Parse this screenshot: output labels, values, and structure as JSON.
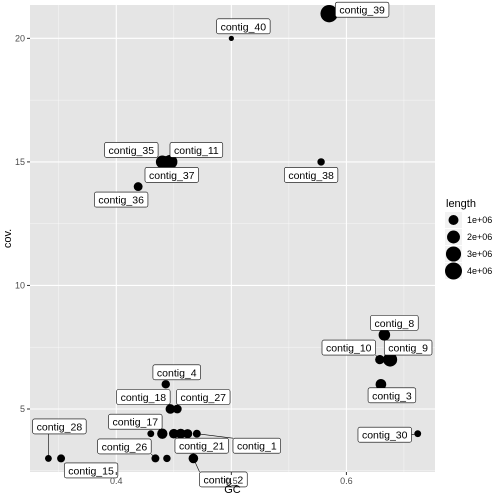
{
  "chart_data": {
    "type": "scatter",
    "xlabel": "GC",
    "ylabel": "cov.",
    "xlim": [
      0.325,
      0.677
    ],
    "ylim": [
      2.45,
      21.35
    ],
    "x_ticks": [
      0.4,
      0.5,
      0.6
    ],
    "x_tick_labels": [
      "0.4",
      "0.5",
      "0.6"
    ],
    "y_ticks": [
      5,
      10,
      15,
      20
    ],
    "y_tick_labels": [
      "5",
      "10",
      "15",
      "20"
    ],
    "grid": true,
    "background": "#e5e5e5",
    "grid_color": "#ffffff",
    "point_color": "#000000",
    "size_legend": {
      "title": "length",
      "position": "right",
      "entries": [
        {
          "label": "1e+06",
          "value": 1000000
        },
        {
          "label": "2e+06",
          "value": 2000000
        },
        {
          "label": "3e+06",
          "value": 3000000
        },
        {
          "label": "4e+06",
          "value": 4000000
        }
      ]
    },
    "points": [
      {
        "label": "contig_39",
        "x": 0.585,
        "y": 21.0,
        "length": 4200000
      },
      {
        "label": "contig_40",
        "x": 0.5,
        "y": 20.0,
        "length": 100000
      },
      {
        "label": "contig_35",
        "x": 0.44,
        "y": 15.0,
        "length": 2000000
      },
      {
        "label": "contig_11",
        "x": 0.447,
        "y": 15.0,
        "length": 2500000
      },
      {
        "label": "contig_37",
        "x": 0.443,
        "y": 15.0,
        "length": 1500000
      },
      {
        "label": "contig_36",
        "x": 0.419,
        "y": 14.0,
        "length": 700000
      },
      {
        "label": "contig_38",
        "x": 0.578,
        "y": 15.0,
        "length": 400000
      },
      {
        "label": "contig_8",
        "x": 0.633,
        "y": 8.0,
        "length": 1500000
      },
      {
        "label": "contig_10",
        "x": 0.629,
        "y": 7.0,
        "length": 800000
      },
      {
        "label": "contig_9",
        "x": 0.638,
        "y": 7.0,
        "length": 2500000
      },
      {
        "label": "contig_3",
        "x": 0.63,
        "y": 6.0,
        "length": 1200000
      },
      {
        "label": "contig_30",
        "x": 0.662,
        "y": 4.0,
        "length": 300000
      },
      {
        "label": "contig_4",
        "x": 0.443,
        "y": 6.0,
        "length": 600000
      },
      {
        "label": "contig_18",
        "x": 0.447,
        "y": 5.0,
        "length": 900000
      },
      {
        "label": "contig_27",
        "x": 0.453,
        "y": 5.0,
        "length": 700000
      },
      {
        "label": "contig_17",
        "x": 0.44,
        "y": 4.0,
        "length": 1100000
      },
      {
        "label": "contig_26",
        "x": 0.434,
        "y": 3.0,
        "length": 500000
      },
      {
        "label": "contig_28",
        "x": 0.341,
        "y": 3.0,
        "length": 300000
      },
      {
        "label": "contig_15",
        "x": 0.352,
        "y": 3.0,
        "length": 500000
      },
      {
        "label": "contig_21",
        "x": 0.456,
        "y": 4.0,
        "length": 1000000
      },
      {
        "label": "contig_1",
        "x": 0.47,
        "y": 4.0,
        "length": 500000
      },
      {
        "label": "contig_2",
        "x": 0.467,
        "y": 3.0,
        "length": 900000
      }
    ],
    "extra_points": [
      {
        "x": 0.43,
        "y": 4.0,
        "length": 300000
      },
      {
        "x": 0.45,
        "y": 4.0,
        "length": 900000
      },
      {
        "x": 0.462,
        "y": 4.0,
        "length": 800000
      },
      {
        "x": 0.444,
        "y": 3.0,
        "length": 400000
      }
    ]
  }
}
